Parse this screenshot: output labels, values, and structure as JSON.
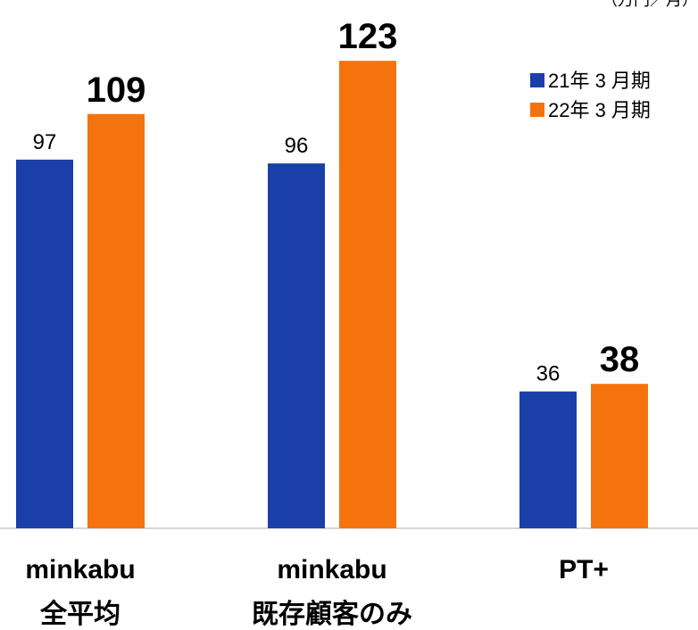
{
  "chart_data": {
    "type": "bar",
    "unit_label": "（万円／月）",
    "categories": [
      [
        "minkabu",
        "全平均"
      ],
      [
        "minkabu",
        "既存顧客のみ"
      ],
      [
        "PT+"
      ]
    ],
    "series": [
      {
        "name": "21年 3 月期",
        "color": "#1a3fa8",
        "values": [
          97,
          96,
          36
        ]
      },
      {
        "name": "22年 3 月期",
        "color": "#f5730f",
        "values": [
          109,
          123,
          38
        ]
      }
    ],
    "ylim": [
      0,
      139
    ]
  }
}
